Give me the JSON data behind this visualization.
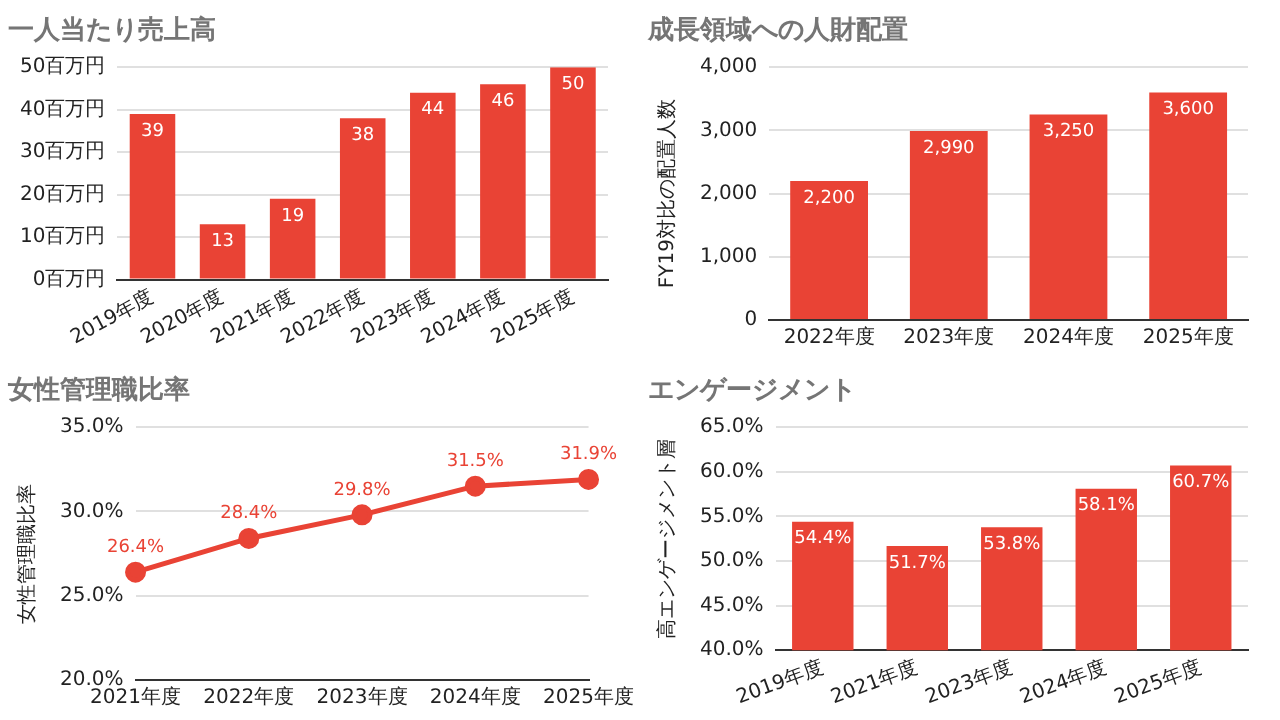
{
  "chart_data": [
    {
      "type": "bar",
      "title": "一人当たり売上高",
      "categories": [
        "2019年度",
        "2020年度",
        "2021年度",
        "2022年度",
        "2023年度",
        "2024年度",
        "2025年度"
      ],
      "series": [
        {
          "color": "#e94335",
          "values": [
            39,
            13,
            19,
            38,
            44,
            46,
            50
          ]
        }
      ],
      "ylim": [
        0,
        50
      ],
      "yticks": [
        {
          "value": 0,
          "label": "0百万円"
        },
        {
          "value": 10,
          "label": "10百万円"
        },
        {
          "value": 20,
          "label": "20百万円"
        },
        {
          "value": 30,
          "label": "30百万円"
        },
        {
          "value": 40,
          "label": "40百万円"
        },
        {
          "value": 50,
          "label": "50百万円"
        }
      ],
      "grid": "y",
      "data_labels": true
    },
    {
      "type": "bar",
      "title": "成長領域への人財配置",
      "ylabel": "FY19対比の配置人数",
      "categories": [
        "2022年度",
        "2023年度",
        "2024年度",
        "2025年度"
      ],
      "series": [
        {
          "color": "#e94335",
          "values": [
            2200,
            2990,
            3250,
            3600
          ],
          "value_labels": [
            "2,200",
            "2,990",
            "3,250",
            "3,600"
          ]
        }
      ],
      "ylim": [
        0,
        4000
      ],
      "yticks": [
        {
          "value": 0,
          "label": "0"
        },
        {
          "value": 1000,
          "label": "1,000"
        },
        {
          "value": 2000,
          "label": "2,000"
        },
        {
          "value": 3000,
          "label": "3,000"
        },
        {
          "value": 4000,
          "label": "4,000"
        }
      ],
      "grid": "y"
    },
    {
      "type": "line",
      "title": "女性管理職比率",
      "ylabel": "女性管理職比率",
      "categories": [
        "2021年度",
        "2022年度",
        "2023年度",
        "2024年度",
        "2025年度"
      ],
      "series": [
        {
          "color": "#e94335",
          "values": [
            26.4,
            28.4,
            29.8,
            31.5,
            31.9
          ],
          "value_labels": [
            "26.4%",
            "28.4%",
            "29.8%",
            "31.5%",
            "31.9%"
          ]
        }
      ],
      "ylim": [
        20,
        35
      ],
      "yticks": [
        {
          "value": 20,
          "label": "20.0%"
        },
        {
          "value": 25,
          "label": "25.0%"
        },
        {
          "value": 30,
          "label": "30.0%"
        },
        {
          "value": 35,
          "label": "35.0%"
        }
      ],
      "grid": "y",
      "marker": "circle"
    },
    {
      "type": "bar",
      "title": "エンゲージメント",
      "ylabel": "高エンゲージメント層",
      "categories": [
        "2019年度",
        "2021年度",
        "2023年度",
        "2024年度",
        "2025年度"
      ],
      "series": [
        {
          "color": "#e94335",
          "values": [
            54.4,
            51.7,
            53.8,
            58.1,
            60.7
          ],
          "value_labels": [
            "54.4%",
            "51.7%",
            "53.8%",
            "58.1%",
            "60.7%"
          ]
        }
      ],
      "ylim": [
        40,
        65
      ],
      "yticks": [
        {
          "value": 40,
          "label": "40.0%"
        },
        {
          "value": 45,
          "label": "45.0%"
        },
        {
          "value": 50,
          "label": "50.0%"
        },
        {
          "value": 55,
          "label": "55.0%"
        },
        {
          "value": 60,
          "label": "60.0%"
        },
        {
          "value": 65,
          "label": "65.0%"
        }
      ],
      "grid": "y"
    }
  ]
}
